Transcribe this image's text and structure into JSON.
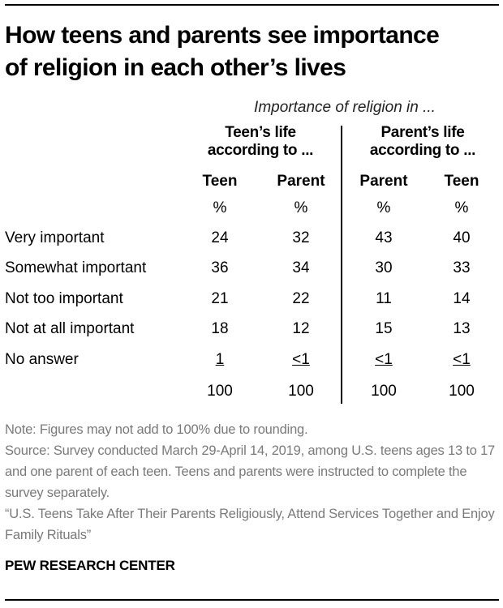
{
  "title_line1": "How teens and parents see importance",
  "title_line2": "of religion in each other’s lives",
  "chart_data": {
    "type": "table",
    "subtitle": "Importance of religion in ...",
    "groups": [
      {
        "label_line1": "Teen’s life",
        "label_line2": "according to ...",
        "columns": [
          "Teen",
          "Parent"
        ]
      },
      {
        "label_line1": "Parent’s life",
        "label_line2": "according to ...",
        "columns": [
          "Parent",
          "Teen"
        ]
      }
    ],
    "unit_row": [
      "%",
      "%",
      "%",
      "%"
    ],
    "rows": [
      {
        "label": "Very important",
        "values": [
          "24",
          "32",
          "43",
          "40"
        ]
      },
      {
        "label": "Somewhat important",
        "values": [
          "36",
          "34",
          "30",
          "33"
        ]
      },
      {
        "label": "Not too important",
        "values": [
          "21",
          "22",
          "11",
          "14"
        ]
      },
      {
        "label": "Not at all important",
        "values": [
          "18",
          "12",
          "15",
          "13"
        ]
      },
      {
        "label": "No answer",
        "values": [
          "1",
          "<1",
          "<1",
          "<1"
        ],
        "underlined": true
      },
      {
        "label": "",
        "values": [
          "100",
          "100",
          "100",
          "100"
        ]
      }
    ]
  },
  "notes": {
    "note": "Note: Figures may not add to 100% due to rounding.",
    "source": "Source: Survey conducted March 29-April 14, 2019, among U.S. teens ages 13 to 17 and one parent of each teen. Teens and parents were instructed to complete the survey separately.",
    "report": "“U.S. Teens Take After Their Parents Religiously, Attend Services Together and Enjoy Family Rituals”"
  },
  "branding": "PEW RESEARCH CENTER"
}
